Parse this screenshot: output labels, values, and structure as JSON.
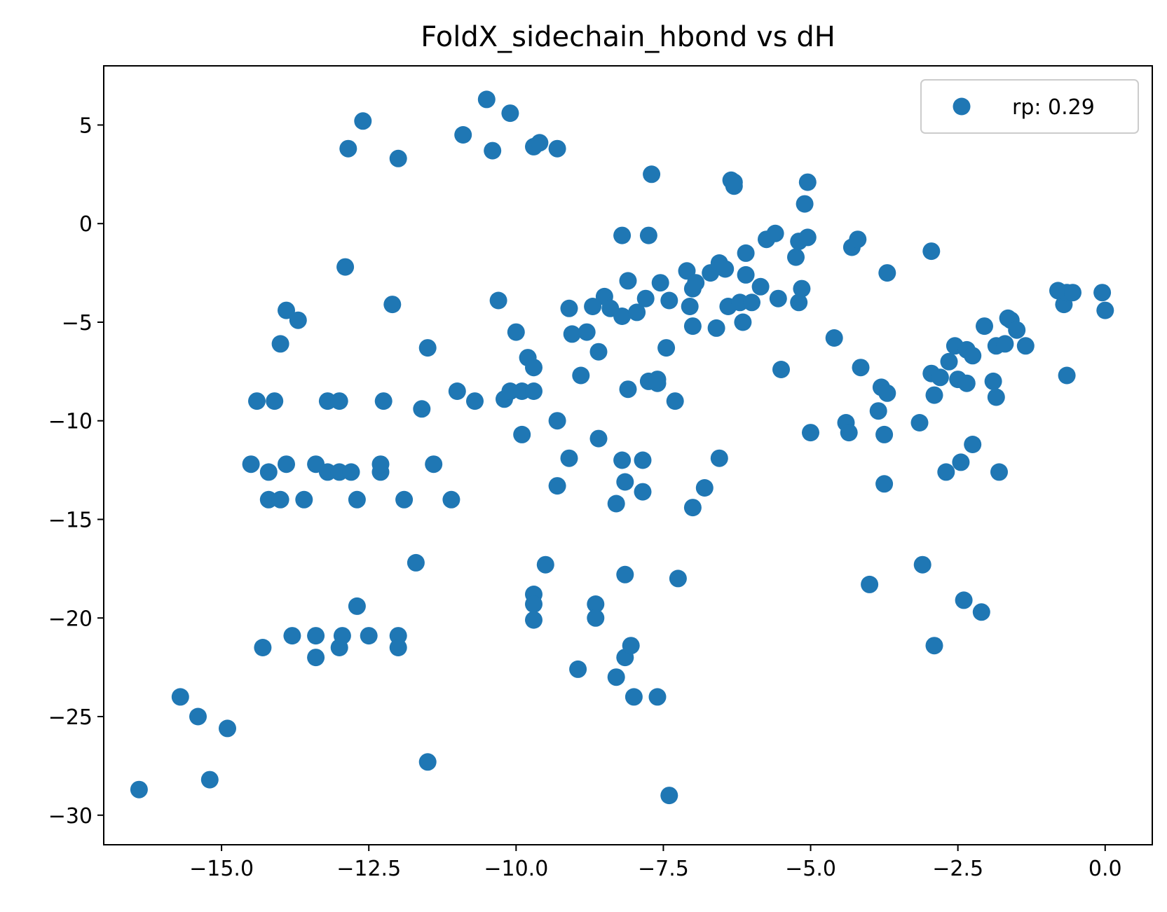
{
  "chart_data": {
    "type": "scatter",
    "title": "FoldX_sidechain_hbond vs dH",
    "xlabel": "",
    "ylabel": "",
    "xlim": [
      -17.0,
      0.8
    ],
    "ylim": [
      -31.5,
      8.0
    ],
    "xticks": [
      -15.0,
      -12.5,
      -10.0,
      -7.5,
      -5.0,
      -2.5,
      0.0
    ],
    "xtick_labels": [
      "−15.0",
      "−12.5",
      "−10.0",
      "−7.5",
      "−5.0",
      "−2.5",
      "0.0"
    ],
    "yticks": [
      5,
      0,
      -5,
      -10,
      -15,
      -20,
      -25,
      -30
    ],
    "ytick_labels": [
      "5",
      "0",
      "−5",
      "−10",
      "−15",
      "−20",
      "−25",
      "−30"
    ],
    "grid": false,
    "legend_position": "top-right",
    "series": [
      {
        "name": "rp: 0.29",
        "color": "#1f77b4",
        "points": [
          [
            -16.4,
            -28.7
          ],
          [
            -15.7,
            -24.0
          ],
          [
            -15.4,
            -25.0
          ],
          [
            -15.2,
            -28.2
          ],
          [
            -14.9,
            -25.6
          ],
          [
            -14.5,
            -12.2
          ],
          [
            -14.4,
            -9.0
          ],
          [
            -14.2,
            -12.6
          ],
          [
            -14.2,
            -14.0
          ],
          [
            -14.1,
            -9.0
          ],
          [
            -14.0,
            -6.1
          ],
          [
            -14.0,
            -14.0
          ],
          [
            -13.9,
            -12.2
          ],
          [
            -13.9,
            -4.4
          ],
          [
            -13.8,
            -20.9
          ],
          [
            -13.7,
            -4.9
          ],
          [
            -14.3,
            -21.5
          ],
          [
            -13.6,
            -14.0
          ],
          [
            -13.4,
            -20.9
          ],
          [
            -13.4,
            -22.0
          ],
          [
            -13.4,
            -12.2
          ],
          [
            -13.2,
            -9.0
          ],
          [
            -13.2,
            -12.6
          ],
          [
            -13.0,
            -9.0
          ],
          [
            -13.0,
            -12.6
          ],
          [
            -13.0,
            -21.5
          ],
          [
            -12.95,
            -20.9
          ],
          [
            -12.9,
            -2.2
          ],
          [
            -12.85,
            3.8
          ],
          [
            -12.8,
            -12.6
          ],
          [
            -12.7,
            -14.0
          ],
          [
            -12.7,
            -19.4
          ],
          [
            -12.6,
            5.2
          ],
          [
            -12.5,
            -20.9
          ],
          [
            -12.3,
            -12.6
          ],
          [
            -12.3,
            -12.2
          ],
          [
            -12.25,
            -9.0
          ],
          [
            -12.1,
            -4.1
          ],
          [
            -12.0,
            3.3
          ],
          [
            -12.0,
            -20.9
          ],
          [
            -12.0,
            -21.5
          ],
          [
            -11.9,
            -14.0
          ],
          [
            -11.7,
            -17.2
          ],
          [
            -11.6,
            -9.4
          ],
          [
            -11.5,
            -6.3
          ],
          [
            -11.5,
            -27.3
          ],
          [
            -11.4,
            -12.2
          ],
          [
            -11.1,
            -14.0
          ],
          [
            -11.0,
            -8.5
          ],
          [
            -10.9,
            4.5
          ],
          [
            -10.7,
            -9.0
          ],
          [
            -10.5,
            6.3
          ],
          [
            -10.4,
            3.7
          ],
          [
            -10.3,
            -3.9
          ],
          [
            -10.2,
            -8.9
          ],
          [
            -10.1,
            -8.5
          ],
          [
            -10.1,
            5.6
          ],
          [
            -10.0,
            -5.5
          ],
          [
            -9.9,
            -10.7
          ],
          [
            -9.9,
            -8.5
          ],
          [
            -9.8,
            -6.8
          ],
          [
            -9.7,
            -18.8
          ],
          [
            -9.7,
            -19.3
          ],
          [
            -9.7,
            -20.1
          ],
          [
            -9.7,
            -8.5
          ],
          [
            -9.7,
            -7.3
          ],
          [
            -9.7,
            3.9
          ],
          [
            -9.6,
            4.1
          ],
          [
            -9.5,
            -17.3
          ],
          [
            -9.3,
            3.8
          ],
          [
            -9.3,
            -10.0
          ],
          [
            -9.3,
            -13.3
          ],
          [
            -9.1,
            -11.9
          ],
          [
            -9.1,
            -4.3
          ],
          [
            -9.05,
            -5.6
          ],
          [
            -8.95,
            -22.6
          ],
          [
            -8.9,
            -7.7
          ],
          [
            -8.8,
            -5.5
          ],
          [
            -8.7,
            -4.2
          ],
          [
            -8.65,
            -19.3
          ],
          [
            -8.65,
            -20.0
          ],
          [
            -8.6,
            -6.5
          ],
          [
            -8.6,
            -10.9
          ],
          [
            -8.5,
            -3.7
          ],
          [
            -8.4,
            -4.3
          ],
          [
            -8.3,
            -23.0
          ],
          [
            -8.3,
            -14.2
          ],
          [
            -8.2,
            -0.6
          ],
          [
            -8.2,
            -4.7
          ],
          [
            -8.2,
            -12.0
          ],
          [
            -8.15,
            -17.8
          ],
          [
            -8.15,
            -13.1
          ],
          [
            -8.15,
            -22.0
          ],
          [
            -8.1,
            -8.4
          ],
          [
            -8.1,
            -2.9
          ],
          [
            -8.05,
            -21.4
          ],
          [
            -8.0,
            -24.0
          ],
          [
            -7.95,
            -4.5
          ],
          [
            -7.85,
            -12.0
          ],
          [
            -7.85,
            -13.6
          ],
          [
            -7.8,
            -3.8
          ],
          [
            -7.75,
            -0.6
          ],
          [
            -7.75,
            -8.0
          ],
          [
            -7.7,
            2.5
          ],
          [
            -7.6,
            -24.0
          ],
          [
            -7.6,
            -8.1
          ],
          [
            -7.6,
            -7.9
          ],
          [
            -7.55,
            -3.0
          ],
          [
            -7.45,
            -6.3
          ],
          [
            -7.4,
            -29.0
          ],
          [
            -7.4,
            -3.9
          ],
          [
            -7.3,
            -9.0
          ],
          [
            -7.25,
            -18.0
          ],
          [
            -7.1,
            -2.4
          ],
          [
            -7.05,
            -4.2
          ],
          [
            -7.0,
            -5.2
          ],
          [
            -7.0,
            -14.4
          ],
          [
            -7.0,
            -3.3
          ],
          [
            -6.95,
            -3.0
          ],
          [
            -6.8,
            -13.4
          ],
          [
            -6.7,
            -2.5
          ],
          [
            -6.6,
            -5.3
          ],
          [
            -6.55,
            -2.0
          ],
          [
            -6.55,
            -11.9
          ],
          [
            -6.45,
            -2.3
          ],
          [
            -6.4,
            -4.2
          ],
          [
            -6.35,
            2.2
          ],
          [
            -6.3,
            1.9
          ],
          [
            -6.3,
            2.1
          ],
          [
            -6.2,
            -4.0
          ],
          [
            -6.15,
            -5.0
          ],
          [
            -6.1,
            -2.6
          ],
          [
            -6.1,
            -1.5
          ],
          [
            -6.0,
            -4.0
          ],
          [
            -5.85,
            -3.2
          ],
          [
            -5.75,
            -0.8
          ],
          [
            -5.6,
            -0.5
          ],
          [
            -5.55,
            -3.8
          ],
          [
            -5.5,
            -7.4
          ],
          [
            -5.25,
            -1.7
          ],
          [
            -5.2,
            -4.0
          ],
          [
            -5.2,
            -0.9
          ],
          [
            -5.15,
            -3.3
          ],
          [
            -5.1,
            1.0
          ],
          [
            -5.05,
            -0.7
          ],
          [
            -5.05,
            2.1
          ],
          [
            -5.0,
            -10.6
          ],
          [
            -4.6,
            -5.8
          ],
          [
            -4.4,
            -10.1
          ],
          [
            -4.35,
            -10.6
          ],
          [
            -4.3,
            -1.2
          ],
          [
            -4.2,
            -0.8
          ],
          [
            -4.15,
            -7.3
          ],
          [
            -4.0,
            -18.3
          ],
          [
            -3.85,
            -9.5
          ],
          [
            -3.8,
            -8.3
          ],
          [
            -3.75,
            -10.7
          ],
          [
            -3.75,
            -13.2
          ],
          [
            -3.7,
            -8.6
          ],
          [
            -3.7,
            -2.5
          ],
          [
            -3.15,
            -10.1
          ],
          [
            -3.1,
            -17.3
          ],
          [
            -2.95,
            -1.4
          ],
          [
            -2.95,
            -7.6
          ],
          [
            -2.9,
            -8.7
          ],
          [
            -2.9,
            -21.4
          ],
          [
            -2.8,
            -7.8
          ],
          [
            -2.7,
            -12.6
          ],
          [
            -2.65,
            -7.0
          ],
          [
            -2.55,
            -6.2
          ],
          [
            -2.5,
            -7.9
          ],
          [
            -2.45,
            -12.1
          ],
          [
            -2.4,
            -19.1
          ],
          [
            -2.35,
            -6.4
          ],
          [
            -2.35,
            -8.1
          ],
          [
            -2.25,
            -6.7
          ],
          [
            -2.25,
            -11.2
          ],
          [
            -2.1,
            -19.7
          ],
          [
            -2.05,
            -5.2
          ],
          [
            -1.9,
            -8.0
          ],
          [
            -1.85,
            -8.8
          ],
          [
            -1.85,
            -6.2
          ],
          [
            -1.8,
            -12.6
          ],
          [
            -1.7,
            -6.1
          ],
          [
            -1.65,
            -4.8
          ],
          [
            -1.6,
            -4.9
          ],
          [
            -1.5,
            -5.4
          ],
          [
            -1.35,
            -6.2
          ],
          [
            -0.8,
            -3.4
          ],
          [
            -0.7,
            -4.1
          ],
          [
            -0.65,
            -3.5
          ],
          [
            -0.65,
            -7.7
          ],
          [
            -0.55,
            -3.5
          ],
          [
            -0.05,
            -3.5
          ],
          [
            0.0,
            -4.4
          ]
        ]
      }
    ]
  }
}
